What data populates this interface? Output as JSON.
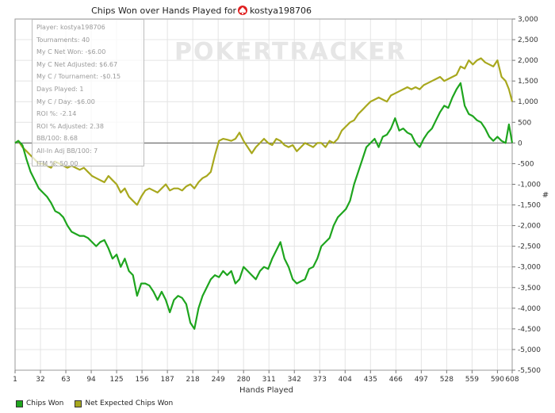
{
  "chart_data": {
    "type": "line",
    "title": "Chips Won over Hands Played for",
    "player_name": "kostya198706",
    "watermark": "POKERTRACKER",
    "xlabel": "Hands Played",
    "ylabel": "#",
    "x_ticks": [
      "1",
      "32",
      "63",
      "94",
      "125",
      "156",
      "187",
      "218",
      "249",
      "280",
      "311",
      "342",
      "373",
      "404",
      "435",
      "466",
      "497",
      "528",
      "559",
      "590",
      "608"
    ],
    "y_ticks": [
      "3,000",
      "2,500",
      "2,000",
      "1,500",
      "1,000",
      "500",
      "0",
      "-500",
      "-1,000",
      "-1,500",
      "-2,000",
      "-2,500",
      "-3,000",
      "-3,500",
      "-4,000",
      "-4,500",
      "-5,000",
      "-5,500"
    ],
    "xlim": [
      1,
      608
    ],
    "ylim": [
      -5500,
      3000
    ],
    "series": [
      {
        "name": "Chips Won",
        "color": "#1ea51e",
        "points": [
          [
            1,
            0
          ],
          [
            5,
            50
          ],
          [
            10,
            -50
          ],
          [
            15,
            -400
          ],
          [
            20,
            -700
          ],
          [
            25,
            -900
          ],
          [
            30,
            -1100
          ],
          [
            35,
            -1200
          ],
          [
            40,
            -1300
          ],
          [
            45,
            -1450
          ],
          [
            50,
            -1650
          ],
          [
            55,
            -1700
          ],
          [
            60,
            -1800
          ],
          [
            65,
            -2000
          ],
          [
            70,
            -2150
          ],
          [
            75,
            -2200
          ],
          [
            80,
            -2250
          ],
          [
            85,
            -2250
          ],
          [
            90,
            -2300
          ],
          [
            95,
            -2400
          ],
          [
            100,
            -2500
          ],
          [
            105,
            -2400
          ],
          [
            110,
            -2350
          ],
          [
            115,
            -2550
          ],
          [
            120,
            -2800
          ],
          [
            125,
            -2700
          ],
          [
            130,
            -3000
          ],
          [
            135,
            -2800
          ],
          [
            140,
            -3100
          ],
          [
            145,
            -3200
          ],
          [
            150,
            -3700
          ],
          [
            155,
            -3400
          ],
          [
            160,
            -3400
          ],
          [
            165,
            -3450
          ],
          [
            170,
            -3600
          ],
          [
            175,
            -3800
          ],
          [
            180,
            -3600
          ],
          [
            185,
            -3800
          ],
          [
            190,
            -4100
          ],
          [
            195,
            -3800
          ],
          [
            200,
            -3700
          ],
          [
            205,
            -3750
          ],
          [
            210,
            -3900
          ],
          [
            215,
            -4350
          ],
          [
            220,
            -4500
          ],
          [
            225,
            -4000
          ],
          [
            230,
            -3700
          ],
          [
            235,
            -3500
          ],
          [
            240,
            -3300
          ],
          [
            245,
            -3200
          ],
          [
            250,
            -3250
          ],
          [
            255,
            -3100
          ],
          [
            260,
            -3200
          ],
          [
            265,
            -3100
          ],
          [
            270,
            -3400
          ],
          [
            275,
            -3300
          ],
          [
            280,
            -3000
          ],
          [
            285,
            -3100
          ],
          [
            290,
            -3200
          ],
          [
            295,
            -3300
          ],
          [
            300,
            -3100
          ],
          [
            305,
            -3000
          ],
          [
            310,
            -3050
          ],
          [
            315,
            -2800
          ],
          [
            320,
            -2600
          ],
          [
            325,
            -2400
          ],
          [
            330,
            -2800
          ],
          [
            335,
            -3000
          ],
          [
            340,
            -3300
          ],
          [
            345,
            -3400
          ],
          [
            350,
            -3350
          ],
          [
            355,
            -3300
          ],
          [
            360,
            -3050
          ],
          [
            365,
            -3000
          ],
          [
            370,
            -2800
          ],
          [
            375,
            -2500
          ],
          [
            380,
            -2400
          ],
          [
            385,
            -2300
          ],
          [
            390,
            -2000
          ],
          [
            395,
            -1800
          ],
          [
            400,
            -1700
          ],
          [
            405,
            -1600
          ],
          [
            410,
            -1400
          ],
          [
            415,
            -1000
          ],
          [
            420,
            -700
          ],
          [
            425,
            -400
          ],
          [
            430,
            -100
          ],
          [
            435,
            0
          ],
          [
            440,
            100
          ],
          [
            445,
            -100
          ],
          [
            450,
            150
          ],
          [
            455,
            200
          ],
          [
            460,
            350
          ],
          [
            465,
            600
          ],
          [
            470,
            300
          ],
          [
            475,
            350
          ],
          [
            480,
            250
          ],
          [
            485,
            200
          ],
          [
            490,
            0
          ],
          [
            495,
            -100
          ],
          [
            500,
            100
          ],
          [
            505,
            250
          ],
          [
            510,
            350
          ],
          [
            515,
            550
          ],
          [
            520,
            750
          ],
          [
            525,
            900
          ],
          [
            530,
            850
          ],
          [
            535,
            1100
          ],
          [
            540,
            1300
          ],
          [
            545,
            1450
          ],
          [
            550,
            900
          ],
          [
            555,
            700
          ],
          [
            560,
            650
          ],
          [
            565,
            550
          ],
          [
            570,
            500
          ],
          [
            575,
            350
          ],
          [
            580,
            150
          ],
          [
            585,
            50
          ],
          [
            590,
            150
          ],
          [
            595,
            50
          ],
          [
            600,
            0
          ],
          [
            604,
            450
          ],
          [
            608,
            0
          ]
        ]
      },
      {
        "name": "Net Expected Chips Won",
        "color": "#a8a81e",
        "points": [
          [
            1,
            0
          ],
          [
            5,
            50
          ],
          [
            10,
            -100
          ],
          [
            15,
            -200
          ],
          [
            20,
            -300
          ],
          [
            25,
            -400
          ],
          [
            30,
            -500
          ],
          [
            35,
            -500
          ],
          [
            40,
            -550
          ],
          [
            45,
            -600
          ],
          [
            50,
            -450
          ],
          [
            55,
            -500
          ],
          [
            60,
            -550
          ],
          [
            65,
            -600
          ],
          [
            70,
            -550
          ],
          [
            75,
            -600
          ],
          [
            80,
            -650
          ],
          [
            85,
            -600
          ],
          [
            90,
            -700
          ],
          [
            95,
            -800
          ],
          [
            100,
            -850
          ],
          [
            105,
            -900
          ],
          [
            110,
            -950
          ],
          [
            115,
            -800
          ],
          [
            120,
            -900
          ],
          [
            125,
            -1000
          ],
          [
            130,
            -1200
          ],
          [
            135,
            -1100
          ],
          [
            140,
            -1300
          ],
          [
            145,
            -1400
          ],
          [
            150,
            -1500
          ],
          [
            155,
            -1300
          ],
          [
            160,
            -1150
          ],
          [
            165,
            -1100
          ],
          [
            170,
            -1150
          ],
          [
            175,
            -1200
          ],
          [
            180,
            -1100
          ],
          [
            185,
            -1000
          ],
          [
            190,
            -1150
          ],
          [
            195,
            -1100
          ],
          [
            200,
            -1100
          ],
          [
            205,
            -1150
          ],
          [
            210,
            -1050
          ],
          [
            215,
            -1000
          ],
          [
            220,
            -1100
          ],
          [
            225,
            -950
          ],
          [
            230,
            -850
          ],
          [
            235,
            -800
          ],
          [
            240,
            -700
          ],
          [
            245,
            -300
          ],
          [
            250,
            50
          ],
          [
            255,
            100
          ],
          [
            260,
            80
          ],
          [
            265,
            50
          ],
          [
            270,
            100
          ],
          [
            275,
            250
          ],
          [
            280,
            50
          ],
          [
            285,
            -100
          ],
          [
            290,
            -250
          ],
          [
            295,
            -100
          ],
          [
            300,
            0
          ],
          [
            305,
            100
          ],
          [
            310,
            0
          ],
          [
            315,
            -50
          ],
          [
            320,
            100
          ],
          [
            325,
            50
          ],
          [
            330,
            -50
          ],
          [
            335,
            -100
          ],
          [
            340,
            -50
          ],
          [
            345,
            -200
          ],
          [
            350,
            -100
          ],
          [
            355,
            0
          ],
          [
            360,
            -50
          ],
          [
            365,
            -100
          ],
          [
            370,
            0
          ],
          [
            375,
            0
          ],
          [
            380,
            -100
          ],
          [
            385,
            50
          ],
          [
            390,
            0
          ],
          [
            395,
            100
          ],
          [
            400,
            300
          ],
          [
            405,
            400
          ],
          [
            410,
            500
          ],
          [
            415,
            550
          ],
          [
            420,
            700
          ],
          [
            425,
            800
          ],
          [
            430,
            900
          ],
          [
            435,
            1000
          ],
          [
            440,
            1050
          ],
          [
            445,
            1100
          ],
          [
            450,
            1050
          ],
          [
            455,
            1000
          ],
          [
            460,
            1150
          ],
          [
            465,
            1200
          ],
          [
            470,
            1250
          ],
          [
            475,
            1300
          ],
          [
            480,
            1350
          ],
          [
            485,
            1300
          ],
          [
            490,
            1350
          ],
          [
            495,
            1300
          ],
          [
            500,
            1400
          ],
          [
            505,
            1450
          ],
          [
            510,
            1500
          ],
          [
            515,
            1550
          ],
          [
            520,
            1600
          ],
          [
            525,
            1500
          ],
          [
            530,
            1550
          ],
          [
            535,
            1600
          ],
          [
            540,
            1650
          ],
          [
            545,
            1850
          ],
          [
            550,
            1800
          ],
          [
            555,
            2000
          ],
          [
            560,
            1900
          ],
          [
            565,
            2000
          ],
          [
            570,
            2050
          ],
          [
            575,
            1950
          ],
          [
            580,
            1900
          ],
          [
            585,
            1850
          ],
          [
            590,
            2000
          ],
          [
            595,
            1600
          ],
          [
            600,
            1500
          ],
          [
            604,
            1300
          ],
          [
            608,
            1000
          ]
        ]
      }
    ],
    "stats": [
      "Player: kostya198706",
      "Tournaments: 40",
      "My C Net Won: -$6.00",
      "My C Net Adjusted: $6.67",
      "My C / Tournament: -$0.15",
      "Days Played: 1",
      "My C / Day: -$6.00",
      "ROI %: -2.14",
      "ROI % Adjusted: 2.38",
      "BB/100: 8.68",
      "All-In Adj BB/100: 7",
      "ITM %: 50.00"
    ],
    "legend_position": "bottom-left",
    "grid": true
  }
}
